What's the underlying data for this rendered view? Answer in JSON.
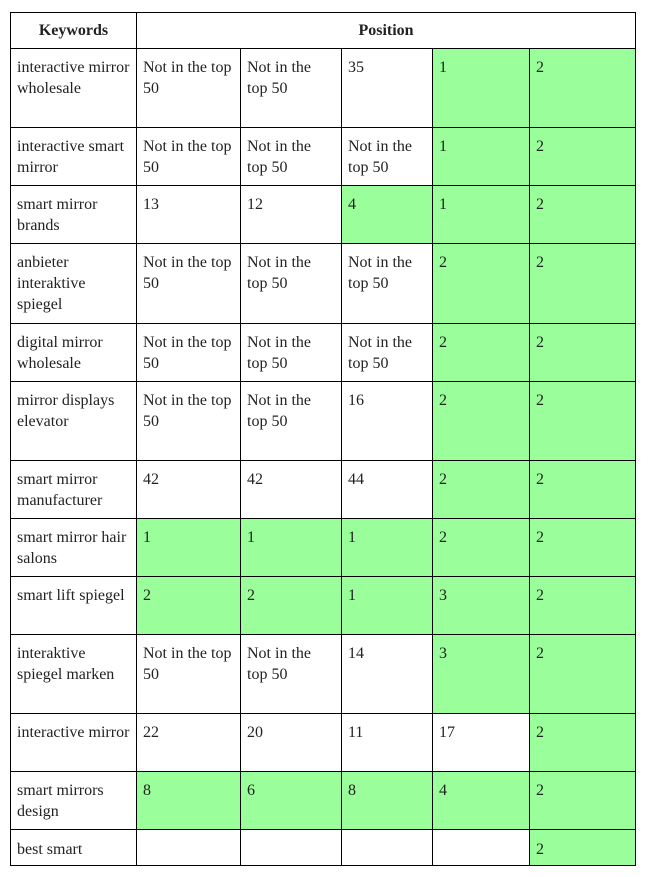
{
  "table": {
    "headers": [
      "Keywords",
      "Position"
    ],
    "highlight_color": "#9aff9a",
    "rows": [
      {
        "keyword": "interactive mirror wholesale",
        "cells": [
          {
            "v": "Not in the top 50",
            "g": false
          },
          {
            "v": "Not in the top 50",
            "g": false
          },
          {
            "v": "35",
            "g": false
          },
          {
            "v": "1",
            "g": true
          },
          {
            "v": "2",
            "g": true
          }
        ]
      },
      {
        "keyword": "interactive smart mirror",
        "cells": [
          {
            "v": "Not in the top 50",
            "g": false
          },
          {
            "v": "Not in the top 50",
            "g": false
          },
          {
            "v": "Not in the top 50",
            "g": false
          },
          {
            "v": "1",
            "g": true
          },
          {
            "v": "2",
            "g": true
          }
        ]
      },
      {
        "keyword": "smart mirror brands",
        "cells": [
          {
            "v": "13",
            "g": false
          },
          {
            "v": "12",
            "g": false
          },
          {
            "v": "4",
            "g": true
          },
          {
            "v": "1",
            "g": true
          },
          {
            "v": "2",
            "g": true
          }
        ]
      },
      {
        "keyword": "anbieter interaktive spiegel",
        "cells": [
          {
            "v": "Not in the top 50",
            "g": false
          },
          {
            "v": "Not in the top 50",
            "g": false
          },
          {
            "v": "Not in the top 50",
            "g": false
          },
          {
            "v": "2",
            "g": true
          },
          {
            "v": "2",
            "g": true
          }
        ]
      },
      {
        "keyword": "digital mirror wholesale",
        "cells": [
          {
            "v": "Not in the top 50",
            "g": false
          },
          {
            "v": "Not in the top 50",
            "g": false
          },
          {
            "v": "Not in the top 50",
            "g": false
          },
          {
            "v": "2",
            "g": true
          },
          {
            "v": "2",
            "g": true
          }
        ]
      },
      {
        "keyword": "mirror displays elevator",
        "cells": [
          {
            "v": "Not in the top 50",
            "g": false
          },
          {
            "v": "Not in the top 50",
            "g": false
          },
          {
            "v": "16",
            "g": false
          },
          {
            "v": "2",
            "g": true
          },
          {
            "v": "2",
            "g": true
          }
        ]
      },
      {
        "keyword": "smart mirror manufacturer",
        "cells": [
          {
            "v": "42",
            "g": false
          },
          {
            "v": "42",
            "g": false
          },
          {
            "v": "44",
            "g": false
          },
          {
            "v": "2",
            "g": true
          },
          {
            "v": "2",
            "g": true
          }
        ]
      },
      {
        "keyword": "smart mirror hair salons",
        "cells": [
          {
            "v": "1",
            "g": true
          },
          {
            "v": "1",
            "g": true
          },
          {
            "v": "1",
            "g": true
          },
          {
            "v": "2",
            "g": true
          },
          {
            "v": "2",
            "g": true
          }
        ]
      },
      {
        "keyword": "smart lift spiegel",
        "cells": [
          {
            "v": "2",
            "g": true
          },
          {
            "v": "2",
            "g": true
          },
          {
            "v": "1",
            "g": true
          },
          {
            "v": "3",
            "g": true
          },
          {
            "v": "2",
            "g": true
          }
        ]
      },
      {
        "keyword": "interaktive spiegel marken",
        "cells": [
          {
            "v": "Not in the top 50",
            "g": false
          },
          {
            "v": "Not in the top 50",
            "g": false
          },
          {
            "v": "14",
            "g": false
          },
          {
            "v": "3",
            "g": true
          },
          {
            "v": "2",
            "g": true
          }
        ]
      },
      {
        "keyword": "interactive mirror",
        "cells": [
          {
            "v": "22",
            "g": false
          },
          {
            "v": "20",
            "g": false
          },
          {
            "v": "11",
            "g": false
          },
          {
            "v": "17",
            "g": false
          },
          {
            "v": "2",
            "g": true
          }
        ]
      },
      {
        "keyword": "smart mirrors design",
        "cells": [
          {
            "v": "8",
            "g": true
          },
          {
            "v": "6",
            "g": true
          },
          {
            "v": "8",
            "g": true
          },
          {
            "v": "4",
            "g": true
          },
          {
            "v": "2",
            "g": true
          }
        ]
      },
      {
        "keyword": "best smart",
        "cells": [
          {
            "v": "",
            "g": false
          },
          {
            "v": "",
            "g": false
          },
          {
            "v": "",
            "g": false
          },
          {
            "v": "",
            "g": false
          },
          {
            "v": "2",
            "g": true
          }
        ]
      }
    ]
  }
}
